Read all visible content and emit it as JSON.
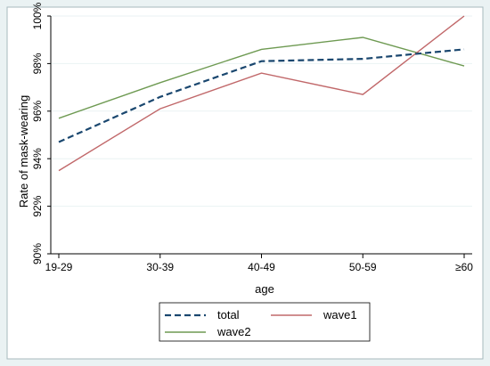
{
  "chart_data": {
    "type": "line",
    "xlabel": "age",
    "ylabel": "Rate of mask-wearing",
    "categories": [
      "19-29",
      "30-39",
      "40-49",
      "50-59",
      "≥60"
    ],
    "y_tick_labels": [
      "90%",
      "92%",
      "94%",
      "96%",
      "98%",
      "100%"
    ],
    "ylim": [
      90,
      100
    ],
    "yticks": [
      90,
      92,
      94,
      96,
      98,
      100
    ],
    "grid": true,
    "legend_placement": "bottom",
    "series": [
      {
        "name": "total",
        "values": [
          94.7,
          96.6,
          98.1,
          98.2,
          98.6
        ],
        "color": "#1a476f",
        "style": "dashed"
      },
      {
        "name": "wave1",
        "values": [
          93.5,
          96.1,
          97.6,
          96.7,
          100.0
        ],
        "color": "#c1686a",
        "style": "solid"
      },
      {
        "name": "wave2",
        "values": [
          95.7,
          97.2,
          98.6,
          99.1,
          97.9
        ],
        "color": "#6e9a52",
        "style": "solid"
      }
    ]
  }
}
